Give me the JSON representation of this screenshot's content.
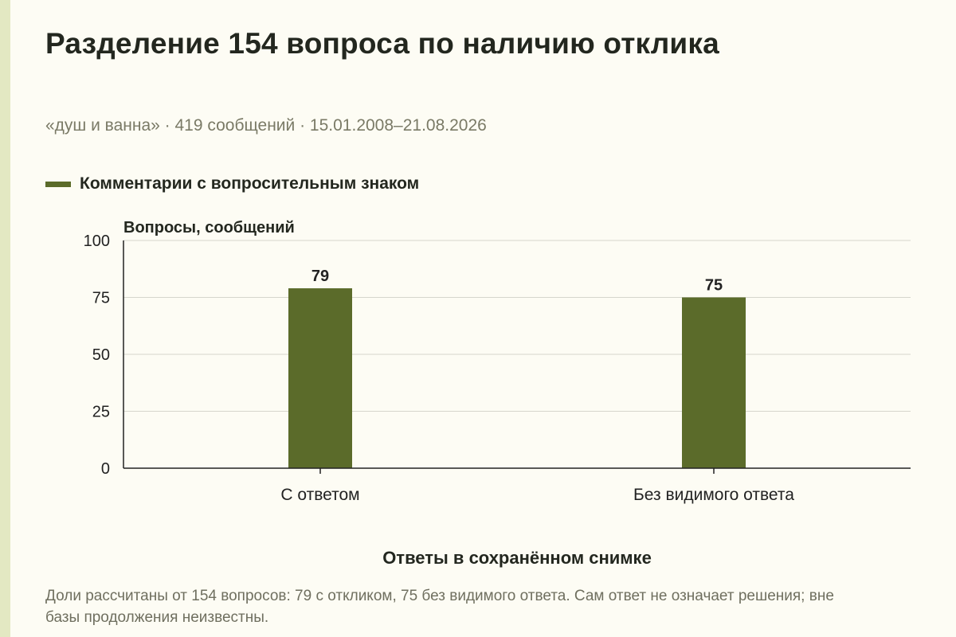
{
  "title": "Разделение 154 вопроса по наличию отклика",
  "subtitle": "«душ и ванна» · 419 сообщений · 15.01.2008–21.08.2026",
  "note": "Доли рассчитаны от 154 вопросов: 79 с откликом, 75 без видимого ответа. Сам ответ не означает решения; вне базы продолжения неизвестны.",
  "colors": {
    "background": "#fdfcf4",
    "accent_bar": "#e3e8c2",
    "series": "#5b6b2a",
    "grid": "#d6d6cc",
    "axis": "#222222"
  },
  "chart_data": {
    "type": "bar",
    "categories": [
      "С ответом",
      "Без видимого ответа"
    ],
    "series": [
      {
        "name": "Комментарии с вопросительным знаком",
        "values": [
          79,
          75
        ]
      }
    ],
    "ylabel": "Вопросы, сообщений",
    "xlabel": "Ответы в сохранённом снимке",
    "ylim": [
      0,
      100
    ],
    "yticks": [
      0,
      25,
      50,
      75,
      100
    ],
    "grid": true,
    "legend": "top-left",
    "data_labels": true
  }
}
